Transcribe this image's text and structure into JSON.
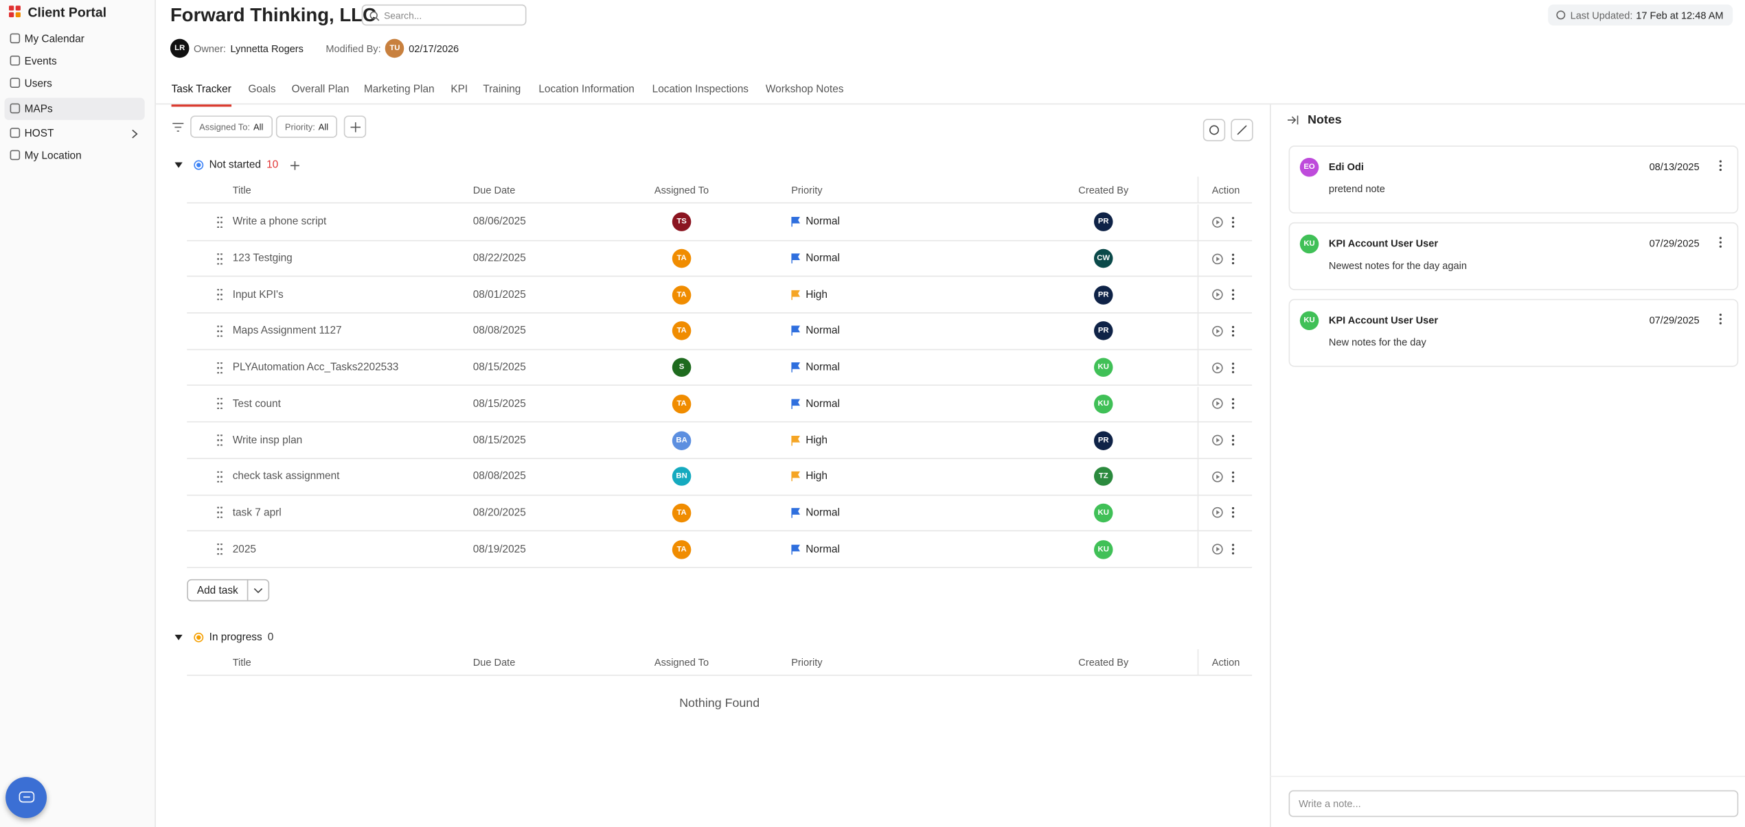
{
  "sidebar": {
    "app_name": "Client Portal",
    "items": [
      "My Calendar",
      "Events",
      "Users",
      "MAPs",
      "HOST",
      "My Location"
    ]
  },
  "header": {
    "title": "Forward Thinking, LLC",
    "search_placeholder": "Search...",
    "owner_label": "Owner:",
    "owner_initials": "LR",
    "owner_name": "Lynnetta Rogers",
    "modified_label": "Modified By:",
    "modified_initials": "TU",
    "modified_date": "02/17/2026",
    "last_updated_label": "Last Updated:",
    "last_updated_value": "17 Feb at 12:48 AM"
  },
  "tabs": [
    "Task Tracker",
    "Goals",
    "Overall Plan",
    "Marketing Plan",
    "KPI",
    "Training",
    "Location Information",
    "Location Inspections",
    "Workshop Notes"
  ],
  "filters": [
    {
      "label": "Assigned To:",
      "value": "All"
    },
    {
      "label": "Priority:",
      "value": "All"
    }
  ],
  "columns": [
    "Title",
    "Due Date",
    "Assigned To",
    "Priority",
    "Created By",
    "Action"
  ],
  "groups": [
    {
      "name": "Not started",
      "count": 10,
      "count_color": "#e03131",
      "dot_color": "#3b82f6",
      "tasks": [
        {
          "title": "Write a phone script",
          "due": "08/06/2025",
          "assigned": {
            "initials": "TS",
            "color": "#8b1420"
          },
          "priority": "Normal",
          "priority_color": "#2f6fde",
          "created": {
            "initials": "PR",
            "color": "#0f2347"
          }
        },
        {
          "title": "123 Testging",
          "due": "08/22/2025",
          "assigned": {
            "initials": "TA",
            "color": "#f08c00"
          },
          "priority": "Normal",
          "priority_color": "#2f6fde",
          "created": {
            "initials": "CW",
            "color": "#0b4a4a"
          }
        },
        {
          "title": "Input KPI's",
          "due": "08/01/2025",
          "assigned": {
            "initials": "TA",
            "color": "#f08c00"
          },
          "priority": "High",
          "priority_color": "#f5a524",
          "created": {
            "initials": "PR",
            "color": "#0f2347"
          }
        },
        {
          "title": "Maps Assignment 1127",
          "due": "08/08/2025",
          "assigned": {
            "initials": "TA",
            "color": "#f08c00"
          },
          "priority": "Normal",
          "priority_color": "#2f6fde",
          "created": {
            "initials": "PR",
            "color": "#0f2347"
          }
        },
        {
          "title": "PLYAutomation Acc_Tasks2202533",
          "due": "08/15/2025",
          "assigned": {
            "initials": "S",
            "color": "#1e6b1e"
          },
          "priority": "Normal",
          "priority_color": "#2f6fde",
          "created": {
            "initials": "KU",
            "color": "#40c057"
          }
        },
        {
          "title": "Test count",
          "due": "08/15/2025",
          "assigned": {
            "initials": "TA",
            "color": "#f08c00"
          },
          "priority": "Normal",
          "priority_color": "#2f6fde",
          "created": {
            "initials": "KU",
            "color": "#40c057"
          }
        },
        {
          "title": "Write insp plan",
          "due": "08/15/2025",
          "assigned": {
            "initials": "BA",
            "color": "#5c8fe0"
          },
          "priority": "High",
          "priority_color": "#f5a524",
          "created": {
            "initials": "PR",
            "color": "#0f2347"
          }
        },
        {
          "title": "check task assignment",
          "due": "08/08/2025",
          "assigned": {
            "initials": "BN",
            "color": "#15aabf"
          },
          "priority": "High",
          "priority_color": "#f5a524",
          "created": {
            "initials": "TZ",
            "color": "#2b8a3e"
          }
        },
        {
          "title": "task 7 aprl",
          "due": "08/20/2025",
          "assigned": {
            "initials": "TA",
            "color": "#f08c00"
          },
          "priority": "Normal",
          "priority_color": "#2f6fde",
          "created": {
            "initials": "KU",
            "color": "#40c057"
          }
        },
        {
          "title": "2025",
          "due": "08/19/2025",
          "assigned": {
            "initials": "TA",
            "color": "#f08c00"
          },
          "priority": "Normal",
          "priority_color": "#2f6fde",
          "created": {
            "initials": "KU",
            "color": "#40c057"
          }
        }
      ],
      "add_button": "Add task"
    },
    {
      "name": "In progress",
      "count": 0,
      "count_color": "#333333",
      "dot_color": "#f59f00",
      "tasks": [],
      "empty_text": "Nothing Found"
    }
  ],
  "notes": {
    "title": "Notes",
    "items": [
      {
        "initials": "EO",
        "color": "#be4bdb",
        "author": "Edi Odi",
        "date": "08/13/2025",
        "text": "pretend note"
      },
      {
        "initials": "KU",
        "color": "#40c057",
        "author": "KPI Account User User",
        "date": "07/29/2025",
        "text": "Newest notes for the day again"
      },
      {
        "initials": "KU",
        "color": "#40c057",
        "author": "KPI Account User User",
        "date": "07/29/2025",
        "text": "New notes for the day"
      }
    ],
    "input_placeholder": "Write a note..."
  }
}
